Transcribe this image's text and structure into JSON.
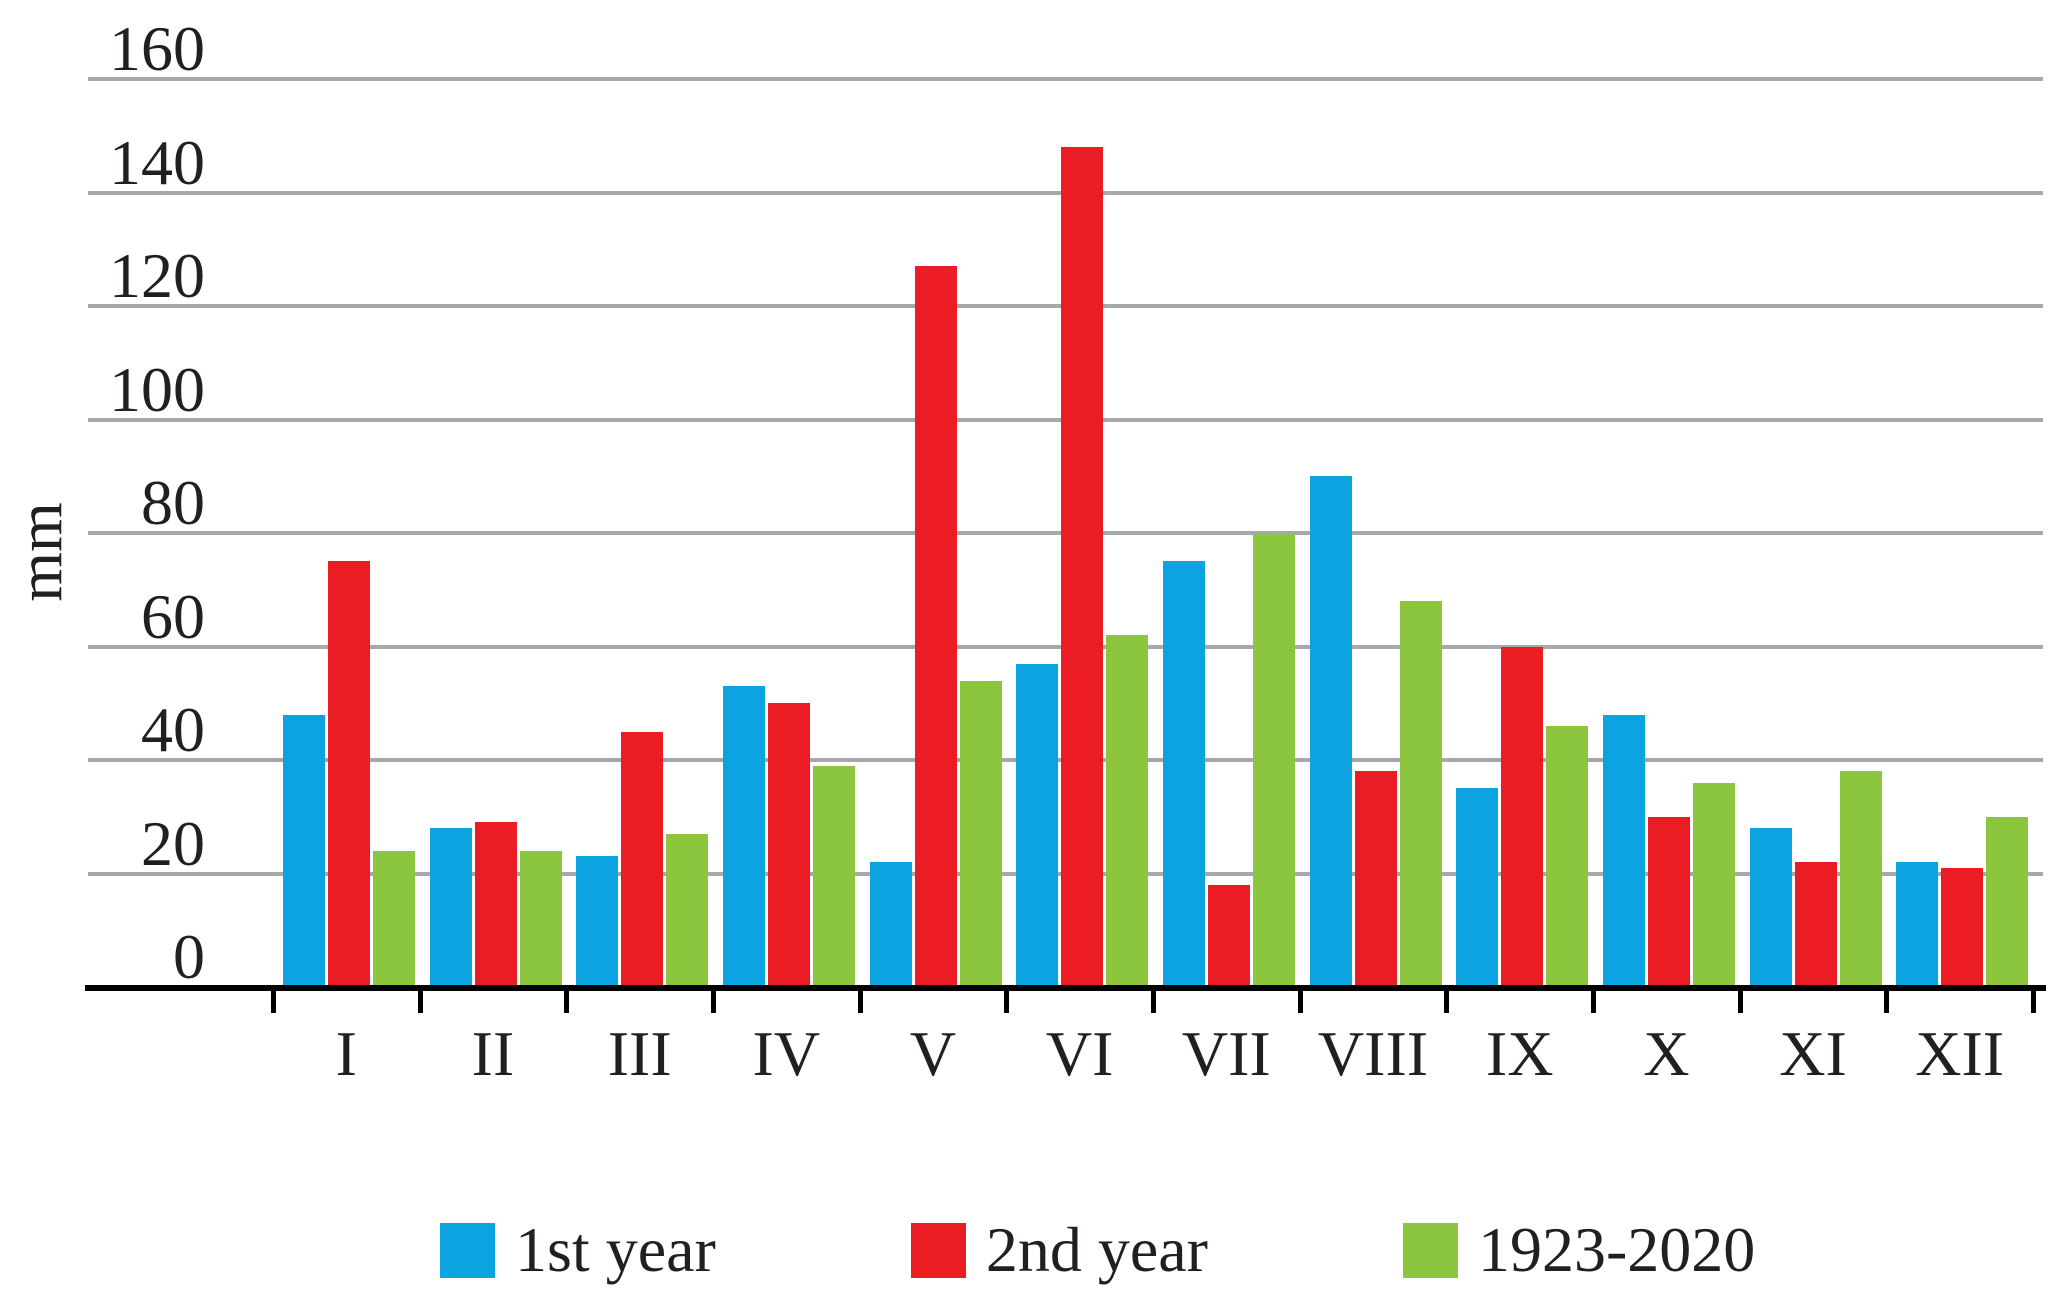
{
  "chart_data": {
    "type": "bar",
    "title": "",
    "xlabel": "",
    "ylabel": "mm",
    "categories": [
      "I",
      "II",
      "III",
      "IV",
      "V",
      "VI",
      "VII",
      "VIII",
      "IX",
      "X",
      "XI",
      "XII"
    ],
    "series": [
      {
        "name": "1st year",
        "color": "#0BA4E0",
        "values": [
          48,
          28,
          23,
          53,
          22,
          57,
          75,
          90,
          35,
          48,
          28,
          22
        ]
      },
      {
        "name": "2nd year",
        "color": "#EC1C24",
        "values": [
          75,
          29,
          45,
          50,
          127,
          148,
          18,
          38,
          60,
          30,
          22,
          21
        ]
      },
      {
        "name": "1923-2020",
        "color": "#8CC63F",
        "values": [
          24,
          24,
          27,
          39,
          54,
          62,
          80,
          68,
          46,
          36,
          38,
          30
        ]
      }
    ],
    "yticks": [
      0,
      20,
      40,
      60,
      80,
      100,
      120,
      140,
      160
    ],
    "ylim": [
      0,
      160
    ],
    "grid": true,
    "legend_position": "bottom",
    "colors": {
      "grid": "#A6A8AB",
      "axis": "#000000",
      "text": "#231F20",
      "background": "#FFFFFF"
    }
  }
}
